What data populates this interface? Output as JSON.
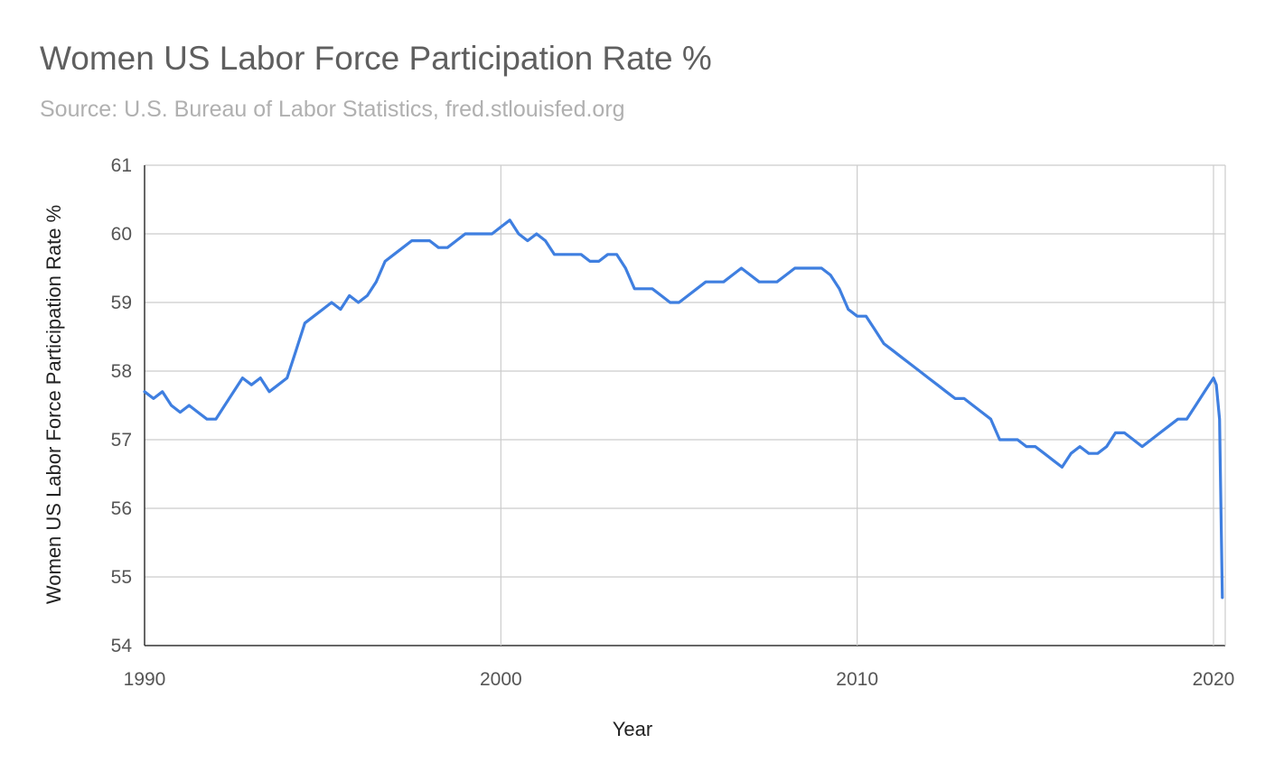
{
  "chart_data": {
    "type": "line",
    "title": "Women US Labor Force Participation Rate %",
    "subtitle": "Source: U.S. Bureau of Labor Statistics, fred.stlouisfed.org",
    "xlabel": "Year",
    "ylabel": "Women US Labor Force Participation Rate %",
    "xlim": [
      1990,
      2020.33
    ],
    "ylim": [
      54,
      61
    ],
    "x_ticks": [
      1990,
      2000,
      2010,
      2020
    ],
    "y_ticks": [
      54,
      55,
      56,
      57,
      58,
      59,
      60,
      61
    ],
    "grid": true,
    "legend": "none",
    "series": [
      {
        "color": "#3f7fe0",
        "points": [
          [
            1990.0,
            57.7
          ],
          [
            1990.25,
            57.6
          ],
          [
            1990.5,
            57.7
          ],
          [
            1990.75,
            57.5
          ],
          [
            1991.0,
            57.4
          ],
          [
            1991.25,
            57.5
          ],
          [
            1991.5,
            57.4
          ],
          [
            1991.75,
            57.3
          ],
          [
            1992.0,
            57.3
          ],
          [
            1992.25,
            57.5
          ],
          [
            1992.5,
            57.7
          ],
          [
            1992.75,
            57.9
          ],
          [
            1993.0,
            57.8
          ],
          [
            1993.25,
            57.9
          ],
          [
            1993.5,
            57.7
          ],
          [
            1993.75,
            57.8
          ],
          [
            1994.0,
            57.9
          ],
          [
            1994.25,
            58.3
          ],
          [
            1994.5,
            58.7
          ],
          [
            1994.75,
            58.8
          ],
          [
            1995.0,
            58.9
          ],
          [
            1995.25,
            59.0
          ],
          [
            1995.5,
            58.9
          ],
          [
            1995.75,
            59.1
          ],
          [
            1996.0,
            59.0
          ],
          [
            1996.25,
            59.1
          ],
          [
            1996.5,
            59.3
          ],
          [
            1996.75,
            59.6
          ],
          [
            1997.0,
            59.7
          ],
          [
            1997.25,
            59.8
          ],
          [
            1997.5,
            59.9
          ],
          [
            1997.75,
            59.9
          ],
          [
            1998.0,
            59.9
          ],
          [
            1998.25,
            59.8
          ],
          [
            1998.5,
            59.8
          ],
          [
            1998.75,
            59.9
          ],
          [
            1999.0,
            60.0
          ],
          [
            1999.25,
            60.0
          ],
          [
            1999.5,
            60.0
          ],
          [
            1999.75,
            60.0
          ],
          [
            2000.0,
            60.1
          ],
          [
            2000.25,
            60.2
          ],
          [
            2000.5,
            60.0
          ],
          [
            2000.75,
            59.9
          ],
          [
            2001.0,
            60.0
          ],
          [
            2001.25,
            59.9
          ],
          [
            2001.5,
            59.7
          ],
          [
            2001.75,
            59.7
          ],
          [
            2002.0,
            59.7
          ],
          [
            2002.25,
            59.7
          ],
          [
            2002.5,
            59.6
          ],
          [
            2002.75,
            59.6
          ],
          [
            2003.0,
            59.7
          ],
          [
            2003.25,
            59.7
          ],
          [
            2003.5,
            59.5
          ],
          [
            2003.75,
            59.2
          ],
          [
            2004.0,
            59.2
          ],
          [
            2004.25,
            59.2
          ],
          [
            2004.5,
            59.1
          ],
          [
            2004.75,
            59.0
          ],
          [
            2005.0,
            59.0
          ],
          [
            2005.25,
            59.1
          ],
          [
            2005.5,
            59.2
          ],
          [
            2005.75,
            59.3
          ],
          [
            2006.0,
            59.3
          ],
          [
            2006.25,
            59.3
          ],
          [
            2006.5,
            59.4
          ],
          [
            2006.75,
            59.5
          ],
          [
            2007.0,
            59.4
          ],
          [
            2007.25,
            59.3
          ],
          [
            2007.5,
            59.3
          ],
          [
            2007.75,
            59.3
          ],
          [
            2008.0,
            59.4
          ],
          [
            2008.25,
            59.5
          ],
          [
            2008.5,
            59.5
          ],
          [
            2008.75,
            59.5
          ],
          [
            2009.0,
            59.5
          ],
          [
            2009.25,
            59.4
          ],
          [
            2009.5,
            59.2
          ],
          [
            2009.75,
            58.9
          ],
          [
            2010.0,
            58.8
          ],
          [
            2010.25,
            58.8
          ],
          [
            2010.5,
            58.6
          ],
          [
            2010.75,
            58.4
          ],
          [
            2011.0,
            58.3
          ],
          [
            2011.25,
            58.2
          ],
          [
            2011.5,
            58.1
          ],
          [
            2011.75,
            58.0
          ],
          [
            2012.0,
            57.9
          ],
          [
            2012.25,
            57.8
          ],
          [
            2012.5,
            57.7
          ],
          [
            2012.75,
            57.6
          ],
          [
            2013.0,
            57.6
          ],
          [
            2013.25,
            57.5
          ],
          [
            2013.5,
            57.4
          ],
          [
            2013.75,
            57.3
          ],
          [
            2014.0,
            57.0
          ],
          [
            2014.25,
            57.0
          ],
          [
            2014.5,
            57.0
          ],
          [
            2014.75,
            56.9
          ],
          [
            2015.0,
            56.9
          ],
          [
            2015.25,
            56.8
          ],
          [
            2015.5,
            56.7
          ],
          [
            2015.75,
            56.6
          ],
          [
            2016.0,
            56.8
          ],
          [
            2016.25,
            56.9
          ],
          [
            2016.5,
            56.8
          ],
          [
            2016.75,
            56.8
          ],
          [
            2017.0,
            56.9
          ],
          [
            2017.25,
            57.1
          ],
          [
            2017.5,
            57.1
          ],
          [
            2017.75,
            57.0
          ],
          [
            2018.0,
            56.9
          ],
          [
            2018.25,
            57.0
          ],
          [
            2018.5,
            57.1
          ],
          [
            2018.75,
            57.2
          ],
          [
            2019.0,
            57.3
          ],
          [
            2019.25,
            57.3
          ],
          [
            2019.5,
            57.5
          ],
          [
            2019.75,
            57.7
          ],
          [
            2020.0,
            57.9
          ],
          [
            2020.08,
            57.8
          ],
          [
            2020.17,
            57.3
          ],
          [
            2020.25,
            54.7
          ]
        ]
      }
    ]
  }
}
